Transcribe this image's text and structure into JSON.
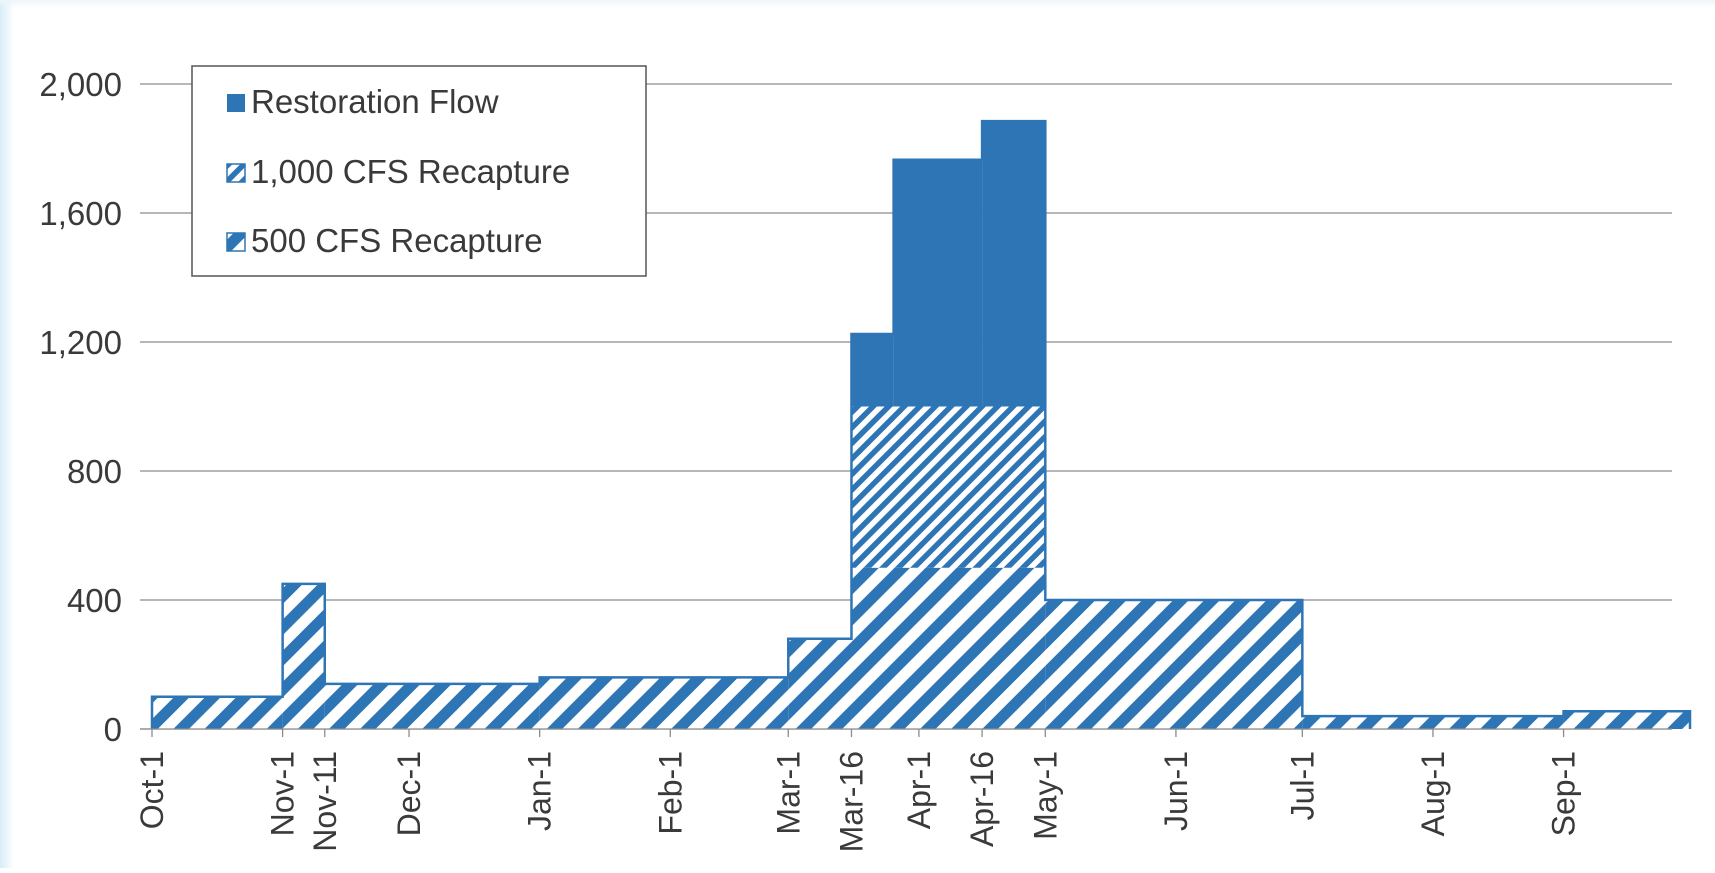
{
  "chart_data": {
    "type": "area",
    "stacked": true,
    "step": true,
    "title": "",
    "xlabel": "",
    "ylabel": "",
    "ylim": [
      0,
      2000
    ],
    "yticks": [
      0,
      400,
      800,
      1200,
      1600,
      2000
    ],
    "ytick_labels": [
      "0",
      "400",
      "800",
      "1,200",
      "1,600",
      "2,000"
    ],
    "grid": true,
    "legend_position": "top-left",
    "colors": {
      "primary": "#2e75b6",
      "hatch_background": "#ffffff"
    },
    "xticks": [
      {
        "day": 0,
        "label": "Oct-1"
      },
      {
        "day": 31,
        "label": "Nov-1"
      },
      {
        "day": 41,
        "label": "Nov-11"
      },
      {
        "day": 61,
        "label": "Dec-1"
      },
      {
        "day": 92,
        "label": "Jan-1"
      },
      {
        "day": 123,
        "label": "Feb-1"
      },
      {
        "day": 151,
        "label": "Mar-1"
      },
      {
        "day": 166,
        "label": "Mar-16"
      },
      {
        "day": 182,
        "label": "Apr-1"
      },
      {
        "day": 197,
        "label": "Apr-16"
      },
      {
        "day": 212,
        "label": "May-1"
      },
      {
        "day": 243,
        "label": "Jun-1"
      },
      {
        "day": 273,
        "label": "Jul-1"
      },
      {
        "day": 304,
        "label": "Aug-1"
      },
      {
        "day": 335,
        "label": "Sep-1"
      }
    ],
    "x_end_day": 365,
    "series": [
      {
        "name": "500 CFS Recapture",
        "pattern": "wide-hatch",
        "steps": [
          {
            "start": 0,
            "end": 31,
            "value": 100
          },
          {
            "start": 31,
            "end": 41,
            "value": 450
          },
          {
            "start": 41,
            "end": 92,
            "value": 140
          },
          {
            "start": 92,
            "end": 151,
            "value": 160
          },
          {
            "start": 151,
            "end": 166,
            "value": 280
          },
          {
            "start": 166,
            "end": 212,
            "value": 500
          },
          {
            "start": 212,
            "end": 273,
            "value": 400
          },
          {
            "start": 273,
            "end": 335,
            "value": 40
          },
          {
            "start": 335,
            "end": 365,
            "value": 55
          }
        ]
      },
      {
        "name": "1,000 CFS Recapture",
        "pattern": "dense-hatch",
        "steps": [
          {
            "start": 166,
            "end": 212,
            "value": 500
          }
        ]
      },
      {
        "name": "Restoration Flow",
        "pattern": "solid",
        "steps": [
          {
            "start": 166,
            "end": 176,
            "value": 225
          },
          {
            "start": 176,
            "end": 197,
            "value": 765
          },
          {
            "start": 197,
            "end": 212,
            "value": 885
          }
        ]
      }
    ],
    "legend": [
      "Restoration Flow",
      "1,000 CFS Recapture",
      "500 CFS Recapture"
    ]
  }
}
